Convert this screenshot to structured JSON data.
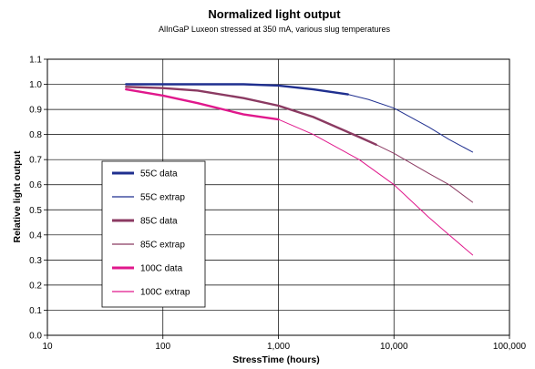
{
  "chart_data": {
    "type": "line",
    "title": "Normalized light output",
    "subtitle": "AlInGaP Luxeon stressed at 350 mA, various slug temperatures",
    "xlabel": "StressTime (hours)",
    "ylabel": "Relative light output",
    "xscale": "log",
    "xlim": [
      10,
      100000
    ],
    "ylim": [
      0,
      1.1
    ],
    "x_ticks": [
      "10",
      "100",
      "1,000",
      "10,000",
      "100,000"
    ],
    "y_ticks": [
      "0.0",
      "0.1",
      "0.2",
      "0.3",
      "0.4",
      "0.5",
      "0.6",
      "0.7",
      "0.8",
      "0.9",
      "1.0",
      "1.1"
    ],
    "grid": true,
    "legend_position": "left-middle",
    "series": [
      {
        "name": "55C data",
        "color": "#1f2f8f",
        "style": "thick",
        "x": [
          48,
          100,
          200,
          500,
          1000,
          2000,
          4000
        ],
        "y": [
          1.0,
          1.0,
          1.0,
          1.0,
          0.995,
          0.98,
          0.96
        ]
      },
      {
        "name": "55C extrap",
        "color": "#1f2f8f",
        "style": "thin",
        "x": [
          4000,
          6000,
          10000,
          20000,
          30000,
          48000
        ],
        "y": [
          0.96,
          0.94,
          0.905,
          0.83,
          0.78,
          0.73
        ]
      },
      {
        "name": "85C data",
        "color": "#8b3a62",
        "style": "thick",
        "x": [
          48,
          100,
          200,
          500,
          1000,
          2000,
          5000,
          7000
        ],
        "y": [
          0.99,
          0.985,
          0.975,
          0.945,
          0.915,
          0.87,
          0.79,
          0.76
        ]
      },
      {
        "name": "85C extrap",
        "color": "#8b3a62",
        "style": "thin",
        "x": [
          7000,
          10000,
          20000,
          30000,
          48000
        ],
        "y": [
          0.76,
          0.725,
          0.645,
          0.6,
          0.53
        ]
      },
      {
        "name": "100C data",
        "color": "#e0188c",
        "style": "thick",
        "x": [
          48,
          100,
          200,
          500,
          1000
        ],
        "y": [
          0.98,
          0.955,
          0.925,
          0.88,
          0.86
        ]
      },
      {
        "name": "100C extrap",
        "color": "#e0188c",
        "style": "thin",
        "x": [
          1000,
          2000,
          5000,
          10000,
          20000,
          30000,
          48000
        ],
        "y": [
          0.86,
          0.8,
          0.7,
          0.6,
          0.47,
          0.4,
          0.32
        ]
      }
    ]
  }
}
